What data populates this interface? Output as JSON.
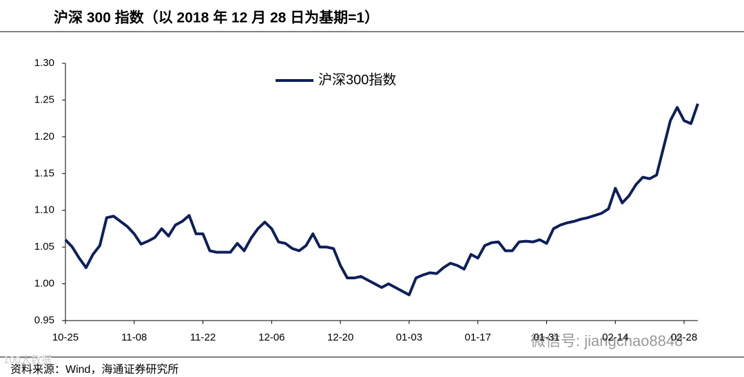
{
  "chart_data": {
    "type": "line",
    "title": "沪深 300 指数（以 2018 年 12 月 28 日为基期=1）",
    "source": "资料来源：Wind，海通证券研究所",
    "watermarks": [
      "微信号: jiangchao8848",
      "100大数据"
    ],
    "legend": "top",
    "categories": [
      "10-25",
      null,
      null,
      null,
      null,
      null,
      null,
      null,
      null,
      null,
      "11-08",
      null,
      null,
      null,
      null,
      null,
      null,
      null,
      null,
      null,
      "11-22",
      null,
      null,
      null,
      null,
      null,
      null,
      null,
      null,
      null,
      "12-06",
      null,
      null,
      null,
      null,
      null,
      null,
      null,
      null,
      null,
      "12-20",
      null,
      null,
      null,
      null,
      null,
      null,
      null,
      null,
      null,
      "01-03",
      null,
      null,
      null,
      null,
      null,
      null,
      null,
      null,
      null,
      "01-17",
      null,
      null,
      null,
      null,
      null,
      null,
      null,
      null,
      null,
      "01-31",
      null,
      null,
      null,
      null,
      null,
      null,
      null,
      null,
      null,
      "02-14",
      null,
      null,
      null,
      null,
      null,
      null,
      null,
      null,
      null,
      "02-28",
      null,
      null
    ],
    "series": [
      {
        "name": "沪深300指数",
        "color": "#0d1f5c",
        "values": [
          1.06,
          1.05,
          1.035,
          1.022,
          1.04,
          1.052,
          1.09,
          1.092,
          1.085,
          1.078,
          1.068,
          1.054,
          1.058,
          1.063,
          1.075,
          1.065,
          1.08,
          1.085,
          1.093,
          1.068,
          1.068,
          1.045,
          1.043,
          1.043,
          1.043,
          1.055,
          1.045,
          1.062,
          1.075,
          1.084,
          1.075,
          1.057,
          1.055,
          1.048,
          1.045,
          1.052,
          1.068,
          1.05,
          1.05,
          1.048,
          1.025,
          1.008,
          1.008,
          1.01,
          1.005,
          1.0,
          0.995,
          1.0,
          0.995,
          0.99,
          0.985,
          1.008,
          1.012,
          1.015,
          1.014,
          1.022,
          1.028,
          1.025,
          1.02,
          1.04,
          1.035,
          1.052,
          1.056,
          1.057,
          1.045,
          1.045,
          1.057,
          1.058,
          1.057,
          1.06,
          1.055,
          1.075,
          1.08,
          1.083,
          1.085,
          1.088,
          1.09,
          1.093,
          1.096,
          1.102,
          1.13,
          1.11,
          1.12,
          1.135,
          1.145,
          1.143,
          1.148,
          1.185,
          1.222,
          1.24,
          1.222,
          1.218,
          1.245
        ]
      }
    ],
    "ylim": [
      0.95,
      1.3
    ],
    "yticks": [
      0.95,
      {
        "value": 1,
        "label": "1.00"
      },
      1.05,
      {
        "value": 1.1,
        "label": "1.10"
      },
      1.15,
      {
        "value": 1.2,
        "label": "1.20"
      },
      1.25,
      {
        "value": 1.3,
        "label": "1.30"
      }
    ]
  }
}
